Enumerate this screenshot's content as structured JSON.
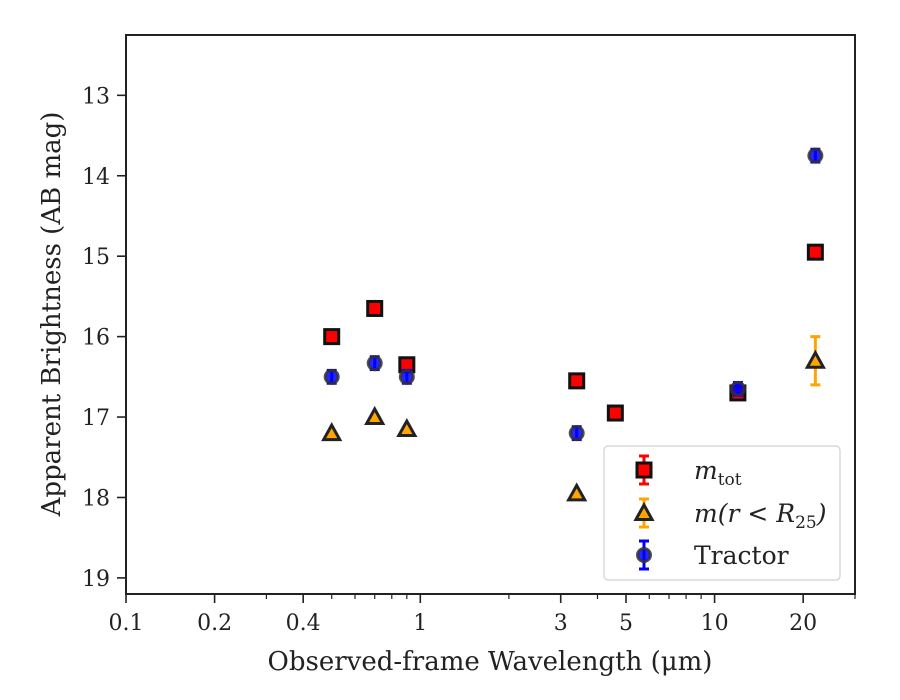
{
  "chart_data": {
    "type": "scatter",
    "xlabel": "Observed-frame Wavelength (μm)",
    "ylabel": "Apparent Brightness (AB mag)",
    "xscale": "log",
    "xlim": [
      0.1,
      30
    ],
    "ylim": [
      19.2,
      12.25
    ],
    "y_inverted": true,
    "x_ticks": [
      0.1,
      0.2,
      0.4,
      1,
      3,
      5,
      10,
      20
    ],
    "x_tick_labels": [
      "0.1",
      "0.2",
      "0.4",
      "1",
      "3",
      "5",
      "10",
      "20"
    ],
    "y_ticks": [
      13,
      14,
      15,
      16,
      17,
      18,
      19
    ],
    "y_tick_labels": [
      "13",
      "14",
      "15",
      "16",
      "17",
      "18",
      "19"
    ],
    "grid": false,
    "legend_position": "lower-right",
    "series": [
      {
        "name": "m_tot",
        "marker": "square",
        "color": "#ff0000",
        "edge": "#111111",
        "points": [
          {
            "x": 0.5,
            "y": 16.0
          },
          {
            "x": 0.7,
            "y": 15.65
          },
          {
            "x": 0.9,
            "y": 16.35
          },
          {
            "x": 3.4,
            "y": 16.55
          },
          {
            "x": 4.6,
            "y": 16.95
          },
          {
            "x": 12.0,
            "y": 16.7
          },
          {
            "x": 22.0,
            "y": 14.95
          }
        ]
      },
      {
        "name": "m(r<R25)",
        "marker": "triangle",
        "color": "#ffa500",
        "edge": "#222222",
        "points": [
          {
            "x": 0.5,
            "y": 17.2
          },
          {
            "x": 0.7,
            "y": 17.0
          },
          {
            "x": 0.9,
            "y": 17.15
          },
          {
            "x": 3.4,
            "y": 17.95
          },
          {
            "x": 22.0,
            "y": 16.3,
            "err": 0.3
          }
        ]
      },
      {
        "name": "Tractor",
        "marker": "circle",
        "color": "#0000ff",
        "edge": "#333333",
        "points": [
          {
            "x": 0.5,
            "y": 16.5,
            "err": 0.08
          },
          {
            "x": 0.7,
            "y": 16.33,
            "err": 0.08
          },
          {
            "x": 0.9,
            "y": 16.5,
            "err": 0.08
          },
          {
            "x": 3.4,
            "y": 17.2,
            "err": 0.08
          },
          {
            "x": 12.0,
            "y": 16.65,
            "err": 0.08
          },
          {
            "x": 22.0,
            "y": 13.75,
            "err": 0.08
          }
        ]
      }
    ],
    "legend": [
      {
        "label_base": "m",
        "label_sub": "tot"
      },
      {
        "label_base": "m(r < R",
        "label_sub": "25",
        "label_tail": ")"
      },
      {
        "label_base": "Tractor"
      }
    ]
  }
}
